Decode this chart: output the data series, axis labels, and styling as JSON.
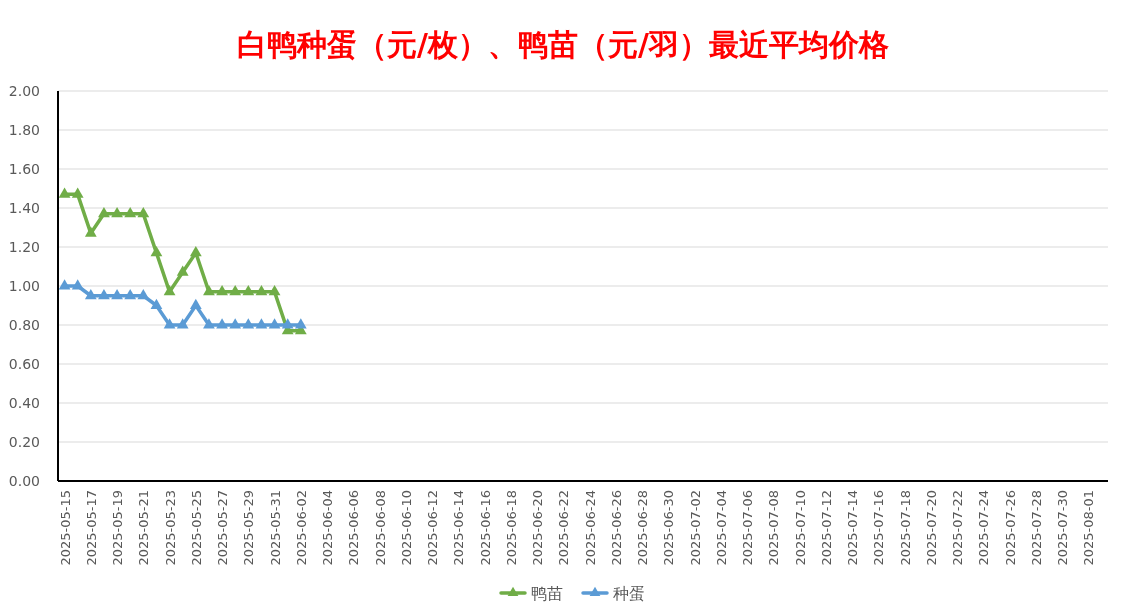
{
  "chart_data": {
    "type": "line",
    "title": "白鸭种蛋（元/枚）、鸭苗（元/羽）最近平均价格",
    "x": [
      "2025-05-15",
      "2025-05-16",
      "2025-05-17",
      "2025-05-18",
      "2025-05-19",
      "2025-05-20",
      "2025-05-21",
      "2025-05-22",
      "2025-05-23",
      "2025-05-24",
      "2025-05-25",
      "2025-05-26",
      "2025-05-27",
      "2025-05-28",
      "2025-05-29",
      "2025-05-30",
      "2025-05-31",
      "2025-06-01",
      "2025-06-02"
    ],
    "series": [
      {
        "name": "鸭苗",
        "color": "#70ad47",
        "values": [
          1.47,
          1.47,
          1.27,
          1.37,
          1.37,
          1.37,
          1.37,
          1.17,
          0.97,
          1.07,
          1.17,
          0.97,
          0.97,
          0.97,
          0.97,
          0.97,
          0.97,
          0.77,
          0.77
        ]
      },
      {
        "name": "种蛋",
        "color": "#5b9bd5",
        "values": [
          1.0,
          1.0,
          0.95,
          0.95,
          0.95,
          0.95,
          0.95,
          0.9,
          0.8,
          0.8,
          0.9,
          0.8,
          0.8,
          0.8,
          0.8,
          0.8,
          0.8,
          0.8,
          0.8
        ]
      }
    ],
    "xlim": [
      "2025-05-14T12:00",
      "2025-08-02T12:00"
    ],
    "xticks": [
      "2025-05-15",
      "2025-05-17",
      "2025-05-19",
      "2025-05-21",
      "2025-05-23",
      "2025-05-25",
      "2025-05-27",
      "2025-05-29",
      "2025-05-31",
      "2025-06-02",
      "2025-06-04",
      "2025-06-06",
      "2025-06-08",
      "2025-06-10",
      "2025-06-12",
      "2025-06-14",
      "2025-06-16",
      "2025-06-18",
      "2025-06-20",
      "2025-06-22",
      "2025-06-24",
      "2025-06-26",
      "2025-06-28",
      "2025-06-30",
      "2025-07-02",
      "2025-07-04",
      "2025-07-06",
      "2025-07-08",
      "2025-07-10",
      "2025-07-12",
      "2025-07-14",
      "2025-07-16",
      "2025-07-18",
      "2025-07-20",
      "2025-07-22",
      "2025-07-24",
      "2025-07-26",
      "2025-07-28",
      "2025-07-30",
      "2025-08-01"
    ],
    "ylim": [
      0,
      2
    ],
    "yticks": [
      {
        "value": 0,
        "label": "0.00"
      },
      {
        "value": 0.2,
        "label": "0.20"
      },
      {
        "value": 0.4,
        "label": "0.40"
      },
      {
        "value": 0.6,
        "label": "0.60"
      },
      {
        "value": 0.8,
        "label": "0.80"
      },
      {
        "value": 1,
        "label": "1.00"
      },
      {
        "value": 1.2,
        "label": "1.20"
      },
      {
        "value": 1.4,
        "label": "1.40"
      },
      {
        "value": 1.6,
        "label": "1.60"
      },
      {
        "value": 1.8,
        "label": "1.80"
      },
      {
        "value": 2,
        "label": "2.00"
      }
    ],
    "grid": "y",
    "legend": "bottom",
    "marker": "triangle",
    "line_style": "solid"
  }
}
